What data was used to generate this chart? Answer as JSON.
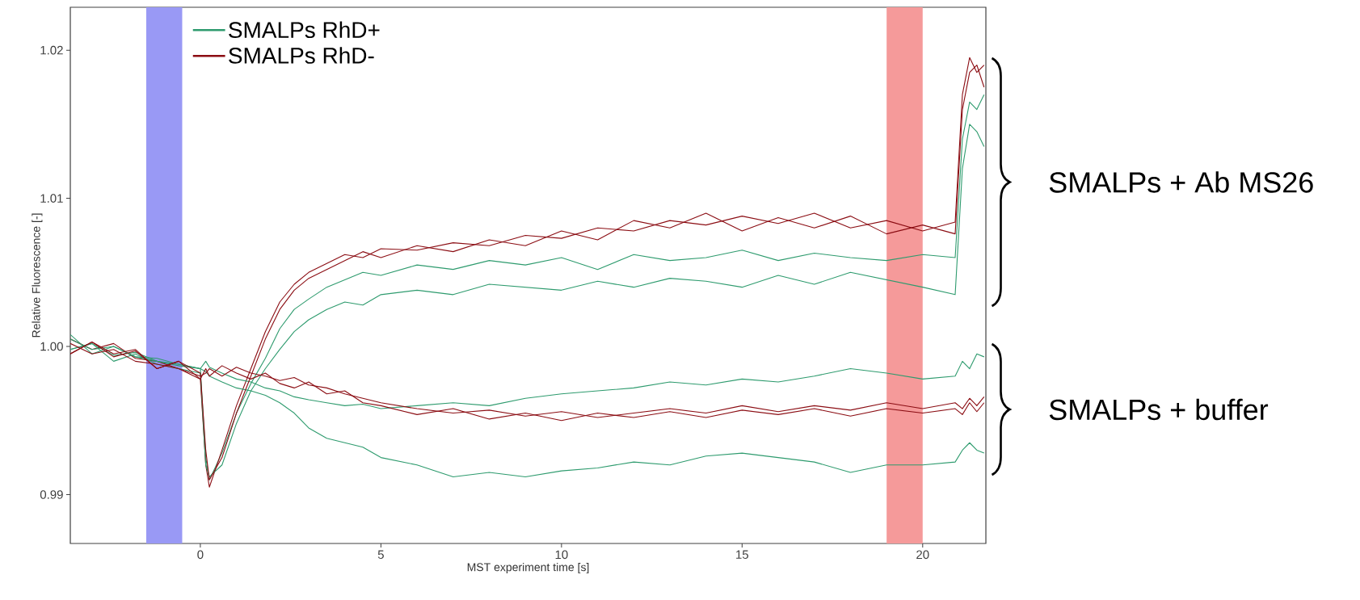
{
  "chart_data": {
    "type": "line",
    "xlabel": "MST experiment time [s]",
    "ylabel": "Relative Fluorescence [-]",
    "xlim": [
      -3.6,
      21.75
    ],
    "ylim": [
      0.9867,
      1.0229
    ],
    "xticks": [
      0,
      5,
      10,
      15,
      20
    ],
    "yticks": [
      0.99,
      {
        "value": 1.0,
        "label": "1.00"
      },
      1.01,
      1.02
    ],
    "legend": "top left",
    "bands": [
      {
        "axis": "x",
        "from": -1.5,
        "to": -0.5,
        "color": "#9999f5"
      },
      {
        "axis": "x",
        "from": 19,
        "to": 20,
        "color": "#f59a9a"
      }
    ],
    "annotations": [
      "SMALPs + Ab MS26",
      "SMALPs + buffer"
    ],
    "x": [
      -3.6,
      -3,
      -2.4,
      -1.8,
      -1.2,
      -0.6,
      0,
      0.15,
      0.25,
      0.6,
      1,
      1.4,
      1.8,
      2.2,
      2.6,
      3,
      3.5,
      4,
      4.5,
      5,
      6,
      7,
      8,
      9,
      10,
      11,
      12,
      13,
      14,
      15,
      16,
      17,
      18,
      19,
      20,
      20.9,
      21.1,
      21.3,
      21.5,
      21.7
    ],
    "series": [
      {
        "name": "SMALPs RhD+",
        "color": "#2e9b6e",
        "values": [
          1.0008,
          0.9995,
          1.0,
          0.9993,
          0.9992,
          0.9988,
          0.9985,
          0.9925,
          0.991,
          0.9928,
          0.9955,
          0.9975,
          0.9992,
          1.0012,
          1.0025,
          1.0032,
          1.004,
          1.0045,
          1.005,
          1.0048,
          1.0055,
          1.0052,
          1.0058,
          1.0055,
          1.006,
          1.0052,
          1.0062,
          1.0058,
          1.006,
          1.0065,
          1.0058,
          1.0063,
          1.006,
          1.0058,
          1.0062,
          1.006,
          1.014,
          1.0165,
          1.016,
          1.017
        ]
      },
      {
        "name": "SMALPs RhD-",
        "color": "#8b0d13",
        "values": [
          1.0005,
          0.9998,
          1.0002,
          0.9992,
          0.999,
          0.9985,
          0.9978,
          0.992,
          0.9905,
          0.993,
          0.996,
          0.9985,
          1.001,
          1.003,
          1.0042,
          1.005,
          1.0056,
          1.0062,
          1.006,
          1.0066,
          1.0065,
          1.007,
          1.0068,
          1.0075,
          1.0073,
          1.008,
          1.0078,
          1.0085,
          1.0082,
          1.0088,
          1.0083,
          1.009,
          1.008,
          1.0085,
          1.0078,
          1.0084,
          1.017,
          1.0195,
          1.0185,
          1.019
        ]
      },
      {
        "color": "#2e9b6e",
        "values": [
          0.9998,
          1.0002,
          0.999,
          0.9995,
          0.9988,
          0.9985,
          0.9982,
          0.992,
          0.9912,
          0.992,
          0.9948,
          0.997,
          0.9985,
          0.9998,
          1.001,
          1.0018,
          1.0025,
          1.003,
          1.0028,
          1.0035,
          1.0038,
          1.0035,
          1.0042,
          1.004,
          1.0038,
          1.0044,
          1.004,
          1.0046,
          1.0044,
          1.004,
          1.0048,
          1.0042,
          1.005,
          1.0045,
          1.004,
          1.0035,
          1.012,
          1.015,
          1.0145,
          1.0135
        ]
      },
      {
        "color": "#2e9b6e",
        "values": [
          1.0005,
          0.9998,
          1.0,
          0.9993,
          0.999,
          0.9988,
          0.9985,
          0.999,
          0.9986,
          0.9982,
          0.9978,
          0.9976,
          0.9972,
          0.997,
          0.9966,
          0.9964,
          0.9962,
          0.996,
          0.9961,
          0.9958,
          0.996,
          0.9962,
          0.996,
          0.9965,
          0.9968,
          0.997,
          0.9972,
          0.9976,
          0.9974,
          0.9978,
          0.9976,
          0.998,
          0.9985,
          0.9982,
          0.9978,
          0.998,
          0.999,
          0.9985,
          0.9995,
          0.9993
        ]
      },
      {
        "color": "#2e9b6e",
        "values": [
          0.9998,
          1.0002,
          0.9994,
          0.9996,
          0.999,
          0.9987,
          0.9985,
          0.9983,
          0.998,
          0.9976,
          0.9972,
          0.997,
          0.9967,
          0.9962,
          0.9955,
          0.9945,
          0.9938,
          0.9935,
          0.9932,
          0.9925,
          0.992,
          0.9912,
          0.9915,
          0.9912,
          0.9916,
          0.9918,
          0.9922,
          0.992,
          0.9926,
          0.9928,
          0.9925,
          0.9922,
          0.9915,
          0.992,
          0.992,
          0.9922,
          0.993,
          0.9935,
          0.993,
          0.9928
        ]
      },
      {
        "color": "#8b0d13",
        "values": [
          0.9995,
          1.0003,
          0.9995,
          0.9998,
          0.9985,
          0.999,
          0.9982,
          0.993,
          0.991,
          0.9925,
          0.9955,
          0.998,
          1.0005,
          1.0025,
          1.0038,
          1.0046,
          1.0052,
          1.0058,
          1.0064,
          1.006,
          1.0068,
          1.0064,
          1.0072,
          1.0068,
          1.0078,
          1.0072,
          1.0085,
          1.008,
          1.009,
          1.0078,
          1.0087,
          1.008,
          1.0088,
          1.0076,
          1.0082,
          1.0076,
          1.016,
          1.0185,
          1.019,
          1.0175
        ]
      },
      {
        "color": "#8b0d13",
        "values": [
          1.0002,
          0.9995,
          0.9998,
          0.999,
          0.9988,
          0.9985,
          0.998,
          0.9982,
          0.9985,
          0.998,
          0.9986,
          0.9982,
          0.998,
          0.9977,
          0.9979,
          0.9974,
          0.9972,
          0.9968,
          0.9965,
          0.9962,
          0.9958,
          0.9955,
          0.9957,
          0.9953,
          0.9956,
          0.9952,
          0.9955,
          0.9958,
          0.9955,
          0.996,
          0.9956,
          0.996,
          0.9957,
          0.9962,
          0.9958,
          0.9962,
          0.9958,
          0.9965,
          0.996,
          0.9966
        ]
      },
      {
        "color": "#8b0d13",
        "values": [
          0.9995,
          1.0003,
          0.9993,
          0.9997,
          0.9985,
          0.999,
          0.9978,
          0.9985,
          0.998,
          0.9987,
          0.9982,
          0.9978,
          0.9982,
          0.9975,
          0.9972,
          0.9976,
          0.9968,
          0.997,
          0.9962,
          0.996,
          0.9954,
          0.9958,
          0.9951,
          0.9955,
          0.995,
          0.9955,
          0.9952,
          0.9956,
          0.9952,
          0.9957,
          0.9954,
          0.9958,
          0.9953,
          0.9958,
          0.9955,
          0.9958,
          0.9954,
          0.9962,
          0.9956,
          0.9962
        ]
      }
    ]
  }
}
